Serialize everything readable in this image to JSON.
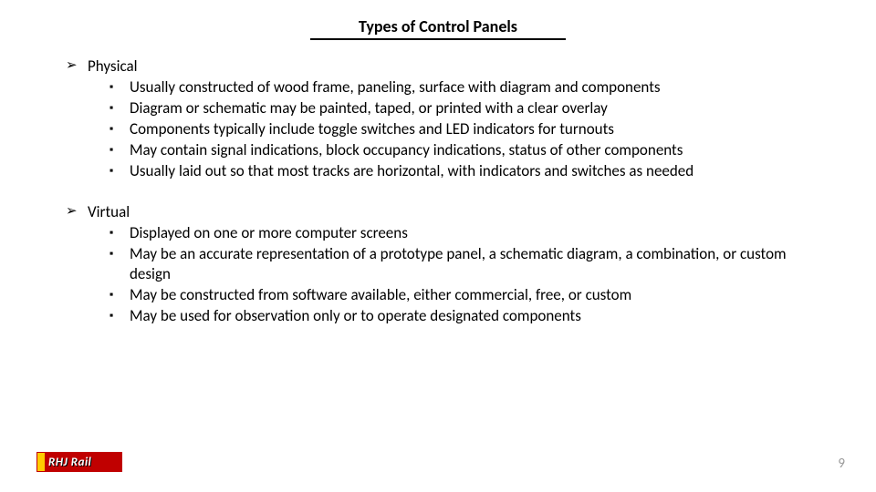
{
  "title": "Types of Control Panels",
  "sections": [
    {
      "heading": "Physical",
      "items": [
        "Usually constructed of wood frame, paneling, surface with diagram and components",
        "Diagram or schematic may be painted, taped, or printed with a clear overlay",
        "Components typically include toggle switches and LED indicators for turnouts",
        "May contain signal indications, block occupancy indications, status of other components",
        "Usually laid out so that most tracks are horizontal, with indicators and switches as needed"
      ]
    },
    {
      "heading": "Virtual",
      "items": [
        "Displayed on one or more computer screens",
        "May be an accurate representation of a prototype panel, a schematic diagram, a combination, or custom design",
        "May be constructed from software available, either commercial, free, or custom",
        "May be used for observation only or to operate designated components"
      ]
    }
  ],
  "logo_text": "RHJ Rail",
  "page_number": "9",
  "colors": {
    "logo_red": "#c00000",
    "logo_yellow": "#ffcc00",
    "pagenum_gray": "#9a9a9a"
  },
  "markers": {
    "level1": "➢",
    "level2": "▪"
  }
}
